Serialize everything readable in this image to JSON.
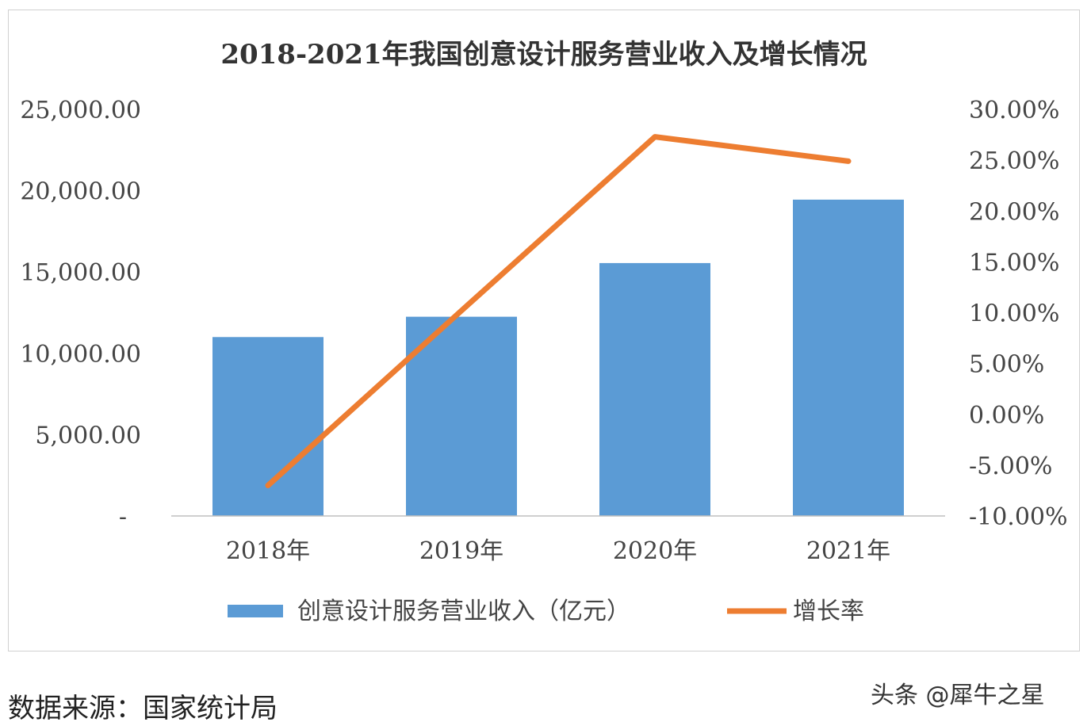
{
  "chart_data": {
    "type": "bar+line",
    "title": "2018-2021年我国创意设计服务营业收入及增长情况",
    "categories": [
      "2018年",
      "2019年",
      "2020年",
      "2021年"
    ],
    "series": [
      {
        "name": "创意设计服务营业收入（亿元）",
        "type": "bar",
        "axis": "left",
        "color": "#5b9bd5",
        "values": [
          11000,
          12250,
          15550,
          19450
        ]
      },
      {
        "name": "增长率",
        "type": "line",
        "axis": "right",
        "color": "#ed7d31",
        "values": [
          -7.0,
          10.2,
          27.3,
          24.9
        ]
      }
    ],
    "left_axis": {
      "ylim": [
        0,
        25000
      ],
      "tick_labels": [
        "-",
        "5,000.00",
        "10,000.00",
        "15,000.00",
        "20,000.00",
        "25,000.00"
      ]
    },
    "right_axis": {
      "ylim": [
        -10,
        30
      ],
      "tick_labels": [
        "-10.00%",
        "-5.00%",
        "0.00%",
        "5.00%",
        "10.00%",
        "15.00%",
        "20.00%",
        "25.00%",
        "30.00%"
      ]
    },
    "grid": false,
    "legend": "bottom"
  },
  "footer": {
    "source": "数据来源：国家统计局",
    "watermark": "头条 @犀牛之星"
  }
}
